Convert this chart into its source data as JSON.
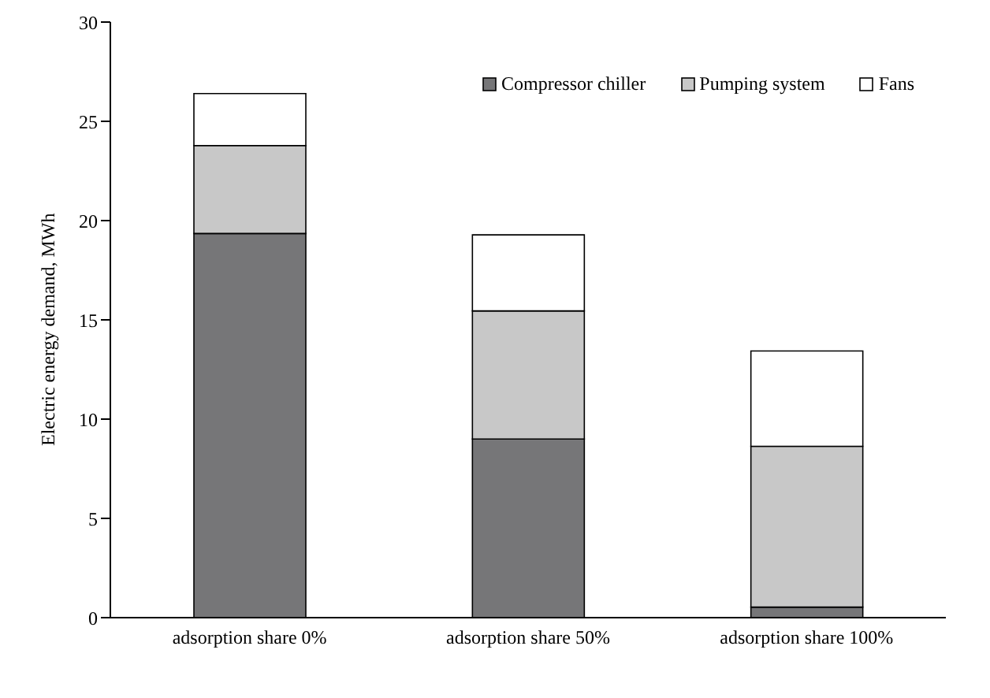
{
  "chart_data": {
    "type": "bar",
    "stacked": true,
    "ylabel": "Electric energy demand, MWh",
    "categories": [
      "adsorption share 0%",
      "adsorption share 50%",
      "adsorption share 100%"
    ],
    "series": [
      {
        "name": "Compressor chiller",
        "color": "#767678",
        "values": [
          19.35,
          9.0,
          0.53
        ]
      },
      {
        "name": "Pumping system",
        "color": "#c8c8c8",
        "values": [
          4.43,
          6.45,
          8.1
        ]
      },
      {
        "name": "Fans",
        "color": "#ffffff",
        "values": [
          2.62,
          3.83,
          4.8
        ]
      }
    ],
    "ylim": [
      0,
      30
    ],
    "yticks": [
      0,
      5,
      10,
      15,
      20,
      25,
      30
    ],
    "grid": false,
    "legend": "top right"
  }
}
